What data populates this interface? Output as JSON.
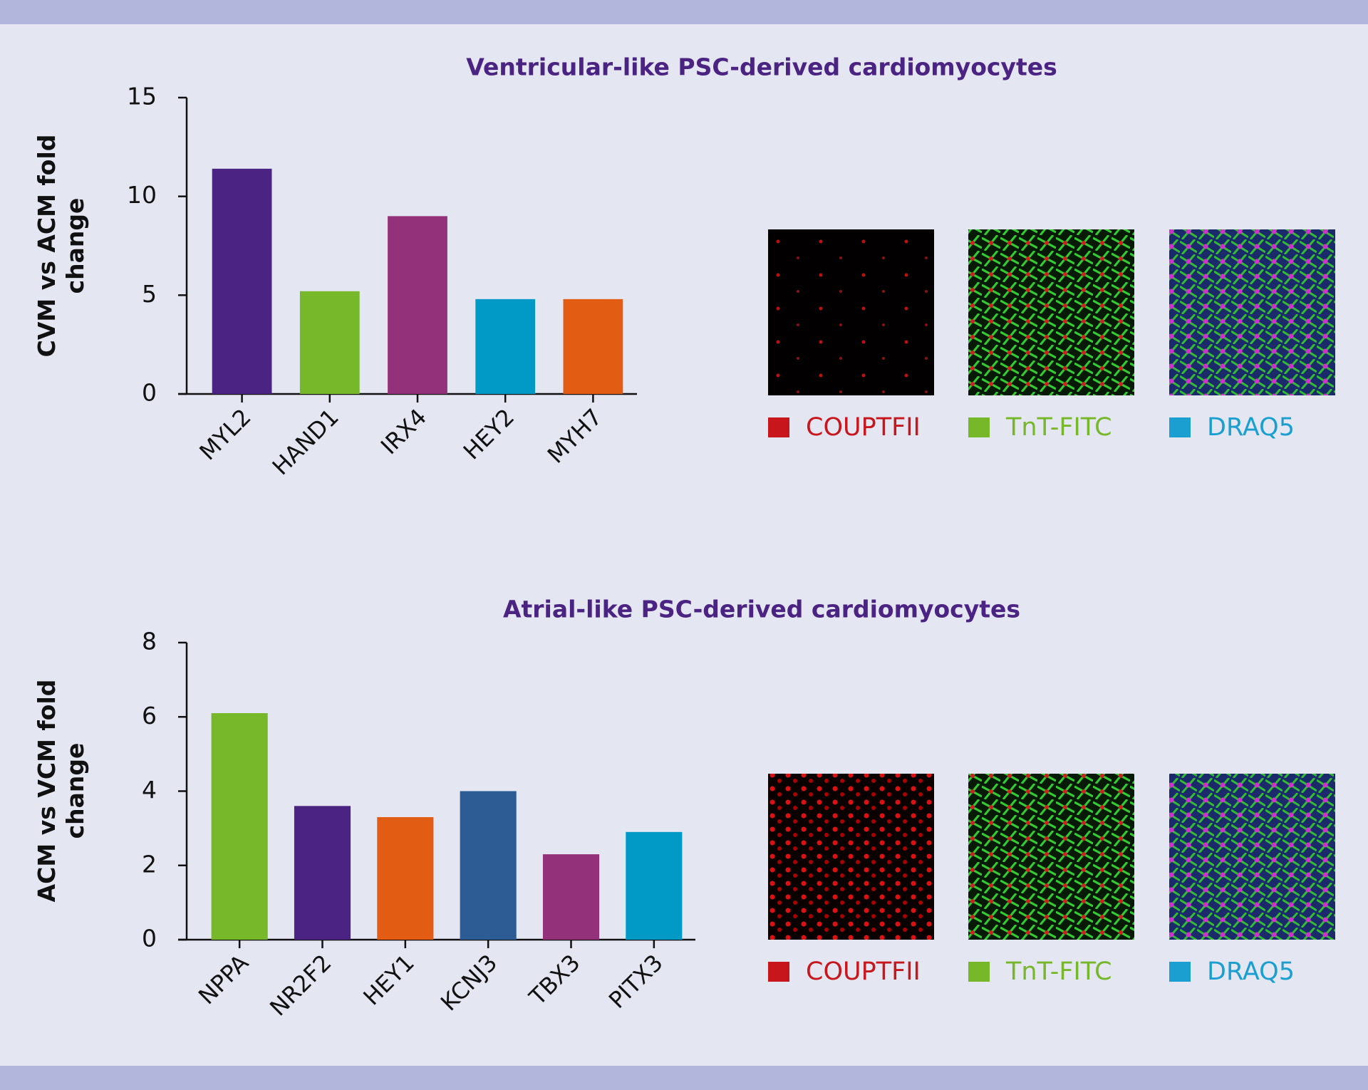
{
  "chart_data": [
    {
      "type": "bar",
      "title": "Ventricular-like PSC-derived cardiomyocytes",
      "y_label": "CVM vs ACM fold change",
      "categories": [
        "MYL2",
        "HAND1",
        "IRX4",
        "HEY2",
        "MYH7"
      ],
      "values": [
        11.4,
        5.2,
        9.0,
        4.8,
        4.8
      ],
      "colors": [
        "#4b2382",
        "#77b82a",
        "#93317a",
        "#0199c5",
        "#e35c14"
      ],
      "ylim": [
        0,
        15
      ],
      "yticks": [
        0,
        5,
        10,
        15
      ],
      "legend": [
        {
          "name": "COUPTFII",
          "color": "#c8161d"
        },
        {
          "name": "TnT-FITC",
          "color": "#77b82a"
        },
        {
          "name": "DRAQ5",
          "color": "#1a9fd0"
        }
      ]
    },
    {
      "type": "bar",
      "title": "Atrial-like PSC-derived cardiomyocytes",
      "y_label": "ACM vs VCM fold change",
      "categories": [
        "NPPA",
        "NR2F2",
        "HEY1",
        "KCNJ3",
        "TBX3",
        "PITX3"
      ],
      "values": [
        6.1,
        3.6,
        3.3,
        4.0,
        2.3,
        2.9
      ],
      "colors": [
        "#77b82a",
        "#4b2382",
        "#e35c14",
        "#2d5b94",
        "#93317a",
        "#0199c5"
      ],
      "ylim": [
        0,
        8
      ],
      "yticks": [
        0,
        2,
        4,
        6,
        8
      ],
      "legend": [
        {
          "name": "COUPTFII",
          "color": "#c8161d"
        },
        {
          "name": "TnT-FITC",
          "color": "#77b82a"
        },
        {
          "name": "DRAQ5",
          "color": "#1a9fd0"
        }
      ]
    }
  ]
}
